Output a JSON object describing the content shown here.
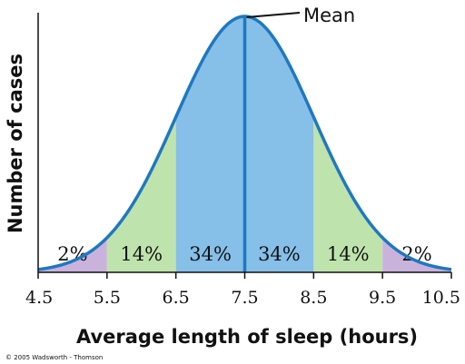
{
  "chart_data": {
    "type": "area",
    "xlabel": "Average length of sleep (hours)",
    "ylabel": "Number of cases",
    "mean_label": "Mean",
    "mean": 7.5,
    "sd": 1,
    "xlim": [
      4.5,
      10.5
    ],
    "x_ticks": [
      "4.5",
      "5.5",
      "6.5",
      "7.5",
      "8.5",
      "9.5",
      "10.5"
    ],
    "regions": [
      {
        "from": 4.5,
        "to": 5.5,
        "percent": 2,
        "label": "2%",
        "color": "#c9b3dc"
      },
      {
        "from": 5.5,
        "to": 6.5,
        "percent": 14,
        "label": "14%",
        "color": "#bfe3ad"
      },
      {
        "from": 6.5,
        "to": 7.5,
        "percent": 34,
        "label": "34%",
        "color": "#86bfe8"
      },
      {
        "from": 7.5,
        "to": 8.5,
        "percent": 34,
        "label": "34%",
        "color": "#86bfe8"
      },
      {
        "from": 8.5,
        "to": 9.5,
        "percent": 14,
        "label": "14%",
        "color": "#bfe3ad"
      },
      {
        "from": 9.5,
        "to": 10.5,
        "percent": 2,
        "label": "2%",
        "color": "#c9b3dc"
      }
    ],
    "curve_color": "#1f78c1",
    "grid": false
  },
  "footer": {
    "copyright": "© 2005 Wadsworth - Thomson"
  }
}
